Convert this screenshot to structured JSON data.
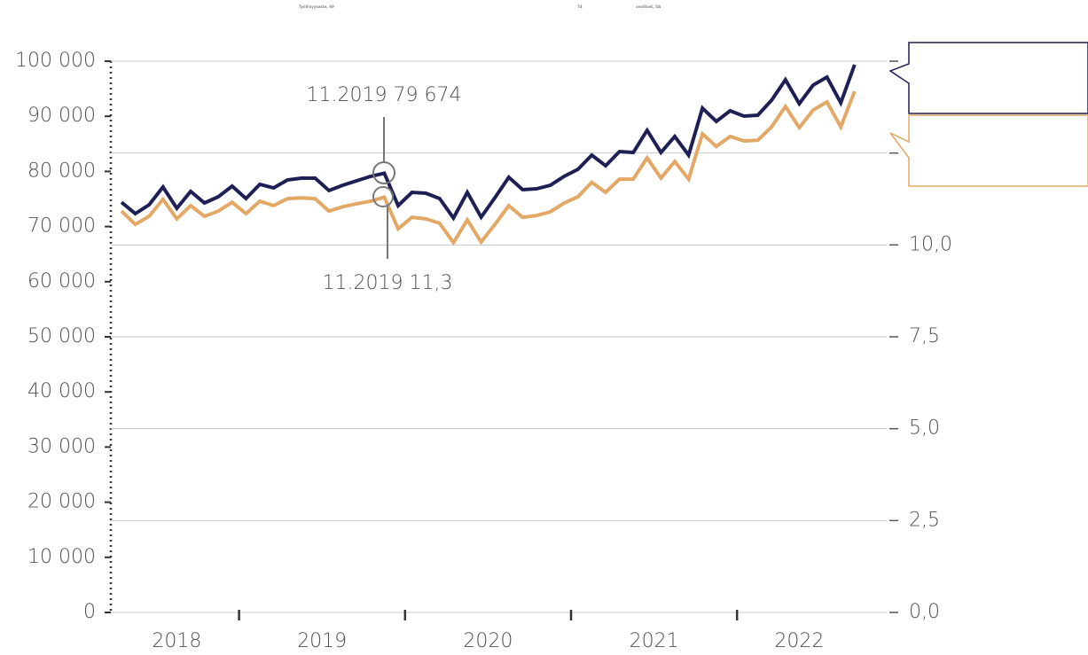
{
  "chart_data": {
    "type": "line",
    "header": [
      "Työllisyysaste, 69",
      "74",
      "ovolliset, SA"
    ],
    "categories": [
      "4.2018",
      "5.2018",
      "6.2018",
      "7.2018",
      "8.2018",
      "9.2018",
      "10.2018",
      "11.2018",
      "12.2018",
      "1.2019",
      "2.2019",
      "3.2019",
      "4.2019",
      "5.2019",
      "6.2019",
      "7.2019",
      "8.2019",
      "9.2019",
      "10.2019",
      "11.2019",
      "12.2019",
      "1.2020",
      "2.2020",
      "3.2020",
      "4.2020",
      "5.2020",
      "6.2020",
      "7.2020",
      "8.2020",
      "9.2020",
      "10.2020",
      "11.2020",
      "12.2020",
      "1.2021",
      "2.2021",
      "3.2021",
      "4.2021",
      "5.2021",
      "6.2021",
      "7.2021",
      "8.2021",
      "9.2021",
      "10.2021",
      "11.2021",
      "12.2021",
      "1.2022",
      "2.2022",
      "3.2022",
      "4.2022",
      "5.2022",
      "6.2022",
      "7.2022",
      "8.2022",
      "9.2022"
    ],
    "year_labels": [
      "2018",
      "2019",
      "2020",
      "2021",
      "2022"
    ],
    "series": [
      {
        "color": "#1e1f55",
        "values": [
          74400,
          72350,
          73950,
          77170,
          73310,
          76370,
          74280,
          75400,
          77330,
          75080,
          77650,
          77010,
          78460,
          78780,
          78780,
          76530,
          77490,
          78300,
          79100,
          79674,
          73790,
          76200,
          76040,
          75080,
          71540,
          76200,
          71700,
          75240,
          78940,
          76690,
          76850,
          77490,
          79100,
          80390,
          82960,
          81030,
          83600,
          83440,
          87460,
          83440,
          86330,
          82960,
          91480,
          89070,
          91000,
          90030,
          90190,
          92930,
          96620,
          92280,
          95660,
          97110,
          92440,
          99360
        ]
      },
      {
        "color": "#e3a865",
        "axis": "y2",
        "values": [
          10.92,
          10.56,
          10.78,
          11.24,
          10.71,
          11.07,
          10.78,
          10.92,
          11.16,
          10.85,
          11.19,
          11.07,
          11.26,
          11.28,
          11.26,
          10.92,
          11.04,
          11.12,
          11.19,
          11.3,
          10.44,
          10.75,
          10.71,
          10.59,
          10.06,
          10.68,
          10.08,
          10.56,
          11.07,
          10.75,
          10.8,
          10.9,
          11.14,
          11.31,
          11.7,
          11.43,
          11.79,
          11.79,
          12.37,
          11.82,
          12.27,
          11.79,
          13.02,
          12.68,
          12.95,
          12.83,
          12.85,
          13.21,
          13.77,
          13.19,
          13.67,
          13.89,
          13.21,
          14.18
        ]
      }
    ],
    "annotations": [
      "11.2019 79 674",
      "11.2019 11,3"
    ],
    "ylim": [
      0,
      100000
    ],
    "yticks": [
      0,
      {
        "value": 10000,
        "label": "10 000"
      },
      {
        "value": 20000,
        "label": "20 000"
      },
      {
        "value": 30000,
        "label": "30 000"
      },
      {
        "value": 40000,
        "label": "40 000"
      },
      {
        "value": 50000,
        "label": "50 000"
      },
      {
        "value": 60000,
        "label": "60 000"
      },
      {
        "value": 70000,
        "label": "70 000"
      },
      {
        "value": 80000,
        "label": "80 000"
      },
      {
        "value": 90000,
        "label": "90 000"
      },
      {
        "value": 100000,
        "label": "100 000"
      }
    ],
    "y2lim": [
      0,
      15
    ],
    "y2ticks": [
      {
        "value": 0,
        "label": "0,0"
      },
      {
        "value": 2.5,
        "label": "2,5"
      },
      {
        "value": 5,
        "label": "5,0"
      },
      {
        "value": 7.5,
        "label": "7,5"
      },
      {
        "value": 10,
        "label": "10,0"
      }
    ],
    "grid": true
  }
}
